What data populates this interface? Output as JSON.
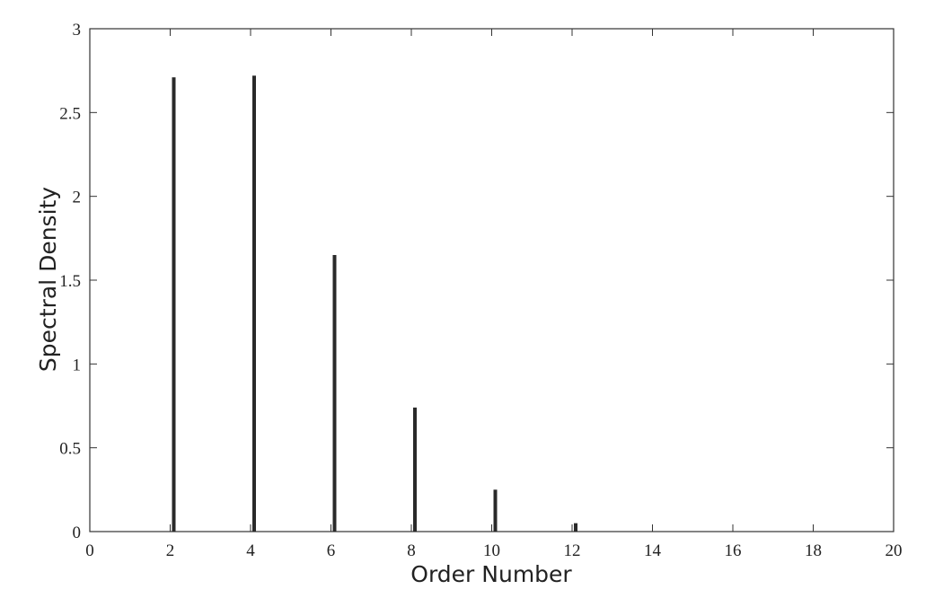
{
  "chart_data": {
    "type": "bar",
    "title": "",
    "xlabel": "Order Number",
    "ylabel": "Spectral Density",
    "xlim": [
      0,
      20
    ],
    "ylim": [
      0,
      3
    ],
    "x_ticks": [
      0,
      2,
      4,
      6,
      8,
      10,
      12,
      14,
      16,
      18,
      20
    ],
    "y_ticks": [
      0,
      0.5,
      1,
      1.5,
      2,
      2.5,
      3
    ],
    "x_tick_labels": [
      "0",
      "2",
      "4",
      "6",
      "8",
      "10",
      "12",
      "14",
      "16",
      "18",
      "20"
    ],
    "y_tick_labels": [
      "0",
      "0.5",
      "1",
      "1.5",
      "2",
      "2.5",
      "3"
    ],
    "grid": false,
    "legend": "none",
    "bar_color": "#2a2a2a",
    "axis_color": "#333333",
    "x": [
      2,
      4,
      6,
      8,
      10,
      12
    ],
    "values": [
      2.71,
      2.72,
      1.65,
      0.74,
      0.25,
      0.05
    ]
  }
}
